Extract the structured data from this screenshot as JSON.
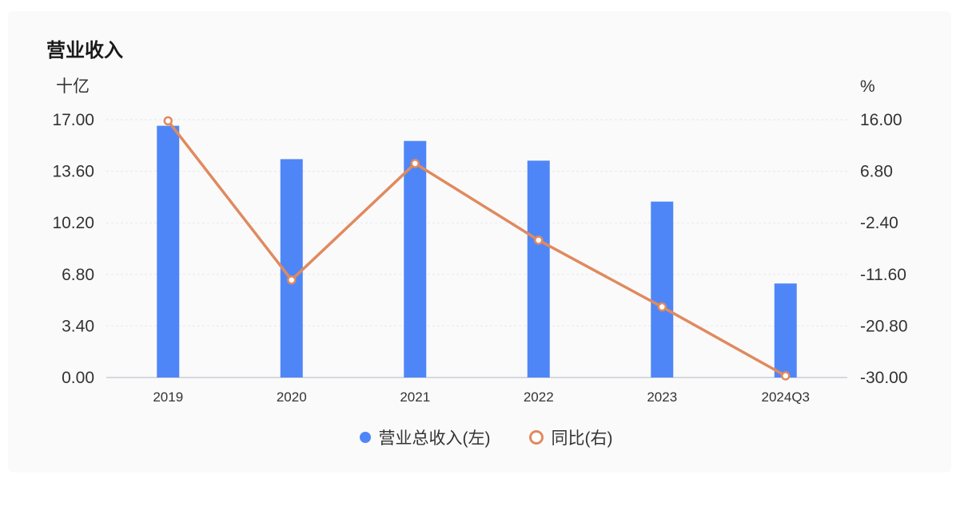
{
  "title": "营业收入",
  "left_unit": "十亿",
  "right_unit": "%",
  "legend": [
    {
      "label": "营业总收入(左)",
      "color": "#4f86f7"
    },
    {
      "label": "同比(右)",
      "color": "#e08a5e"
    }
  ],
  "chart_data": {
    "type": "bar",
    "categories": [
      "2019",
      "2020",
      "2021",
      "2022",
      "2023",
      "2024Q3"
    ],
    "series": [
      {
        "name": "营业总收入(左)",
        "type": "bar",
        "axis": "left",
        "values": [
          16.6,
          14.4,
          15.6,
          14.3,
          11.6,
          6.2
        ]
      },
      {
        "name": "同比(右)",
        "type": "line",
        "axis": "right",
        "values": [
          15.8,
          -12.6,
          8.2,
          -5.5,
          -17.4,
          -29.7
        ]
      }
    ],
    "left_axis": {
      "ticks": [
        "0.00",
        "3.40",
        "6.80",
        "10.20",
        "13.60",
        "17.00"
      ],
      "ylim": [
        0,
        17
      ]
    },
    "right_axis": {
      "ticks": [
        "-30.00",
        "-20.80",
        "-11.60",
        "-2.40",
        "6.80",
        "16.00"
      ],
      "ylim": [
        -30,
        16
      ]
    },
    "grid": true,
    "legend_position": "bottom"
  }
}
